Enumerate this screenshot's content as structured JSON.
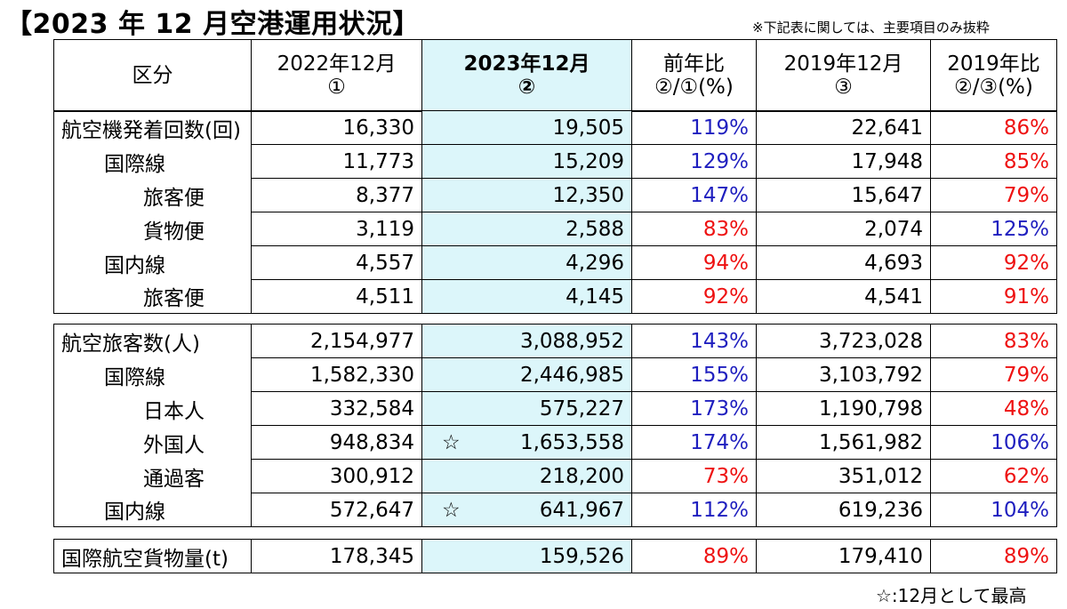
{
  "title": "【2023 年 12 月空港運用状況】",
  "note": "※下記表に関しては、主要項目のみ抜粋",
  "footnote": "☆:12月として最高",
  "headers": [
    {
      "line1": "区分",
      "line2": ""
    },
    {
      "line1": "2022年12月",
      "line2": "①"
    },
    {
      "line1": "2023年12月",
      "line2": "②"
    },
    {
      "line1": "前年比",
      "line2": "②/①(%)"
    },
    {
      "line1": "2019年12月",
      "line2": "③"
    },
    {
      "line1": "2019年比",
      "line2": "②/③(%)"
    }
  ],
  "colors": {
    "highlight": "#dcf6fa",
    "pct_up": "#1f1fbf",
    "pct_down": "#ee1111"
  },
  "sections": [
    {
      "rows": [
        {
          "label": "航空機発着回数(回)",
          "level": 0,
          "y2022": "16,330",
          "y2023": "19,505",
          "star": "",
          "yoy": "119%",
          "yoy_color": "blue",
          "y2019": "22,641",
          "vs2019": "86%",
          "vs2019_color": "red"
        },
        {
          "label": "国際線",
          "level": 1,
          "y2022": "11,773",
          "y2023": "15,209",
          "star": "",
          "yoy": "129%",
          "yoy_color": "blue",
          "y2019": "17,948",
          "vs2019": "85%",
          "vs2019_color": "red"
        },
        {
          "label": "旅客便",
          "level": 2,
          "y2022": "8,377",
          "y2023": "12,350",
          "star": "",
          "yoy": "147%",
          "yoy_color": "blue",
          "y2019": "15,647",
          "vs2019": "79%",
          "vs2019_color": "red"
        },
        {
          "label": "貨物便",
          "level": 2,
          "y2022": "3,119",
          "y2023": "2,588",
          "star": "",
          "yoy": "83%",
          "yoy_color": "red",
          "y2019": "2,074",
          "vs2019": "125%",
          "vs2019_color": "blue"
        },
        {
          "label": "国内線",
          "level": 1,
          "y2022": "4,557",
          "y2023": "4,296",
          "star": "",
          "yoy": "94%",
          "yoy_color": "red",
          "y2019": "4,693",
          "vs2019": "92%",
          "vs2019_color": "red"
        },
        {
          "label": "旅客便",
          "level": 2,
          "y2022": "4,511",
          "y2023": "4,145",
          "star": "",
          "yoy": "92%",
          "yoy_color": "red",
          "y2019": "4,541",
          "vs2019": "91%",
          "vs2019_color": "red"
        }
      ]
    },
    {
      "rows": [
        {
          "label": "航空旅客数(人)",
          "level": 0,
          "y2022": "2,154,977",
          "y2023": "3,088,952",
          "star": "",
          "yoy": "143%",
          "yoy_color": "blue",
          "y2019": "3,723,028",
          "vs2019": "83%",
          "vs2019_color": "red"
        },
        {
          "label": "国際線",
          "level": 1,
          "y2022": "1,582,330",
          "y2023": "2,446,985",
          "star": "",
          "yoy": "155%",
          "yoy_color": "blue",
          "y2019": "3,103,792",
          "vs2019": "79%",
          "vs2019_color": "red"
        },
        {
          "label": "日本人",
          "level": 2,
          "y2022": "332,584",
          "y2023": "575,227",
          "star": "",
          "yoy": "173%",
          "yoy_color": "blue",
          "y2019": "1,190,798",
          "vs2019": "48%",
          "vs2019_color": "red"
        },
        {
          "label": "外国人",
          "level": 2,
          "y2022": "948,834",
          "y2023": "1,653,558",
          "star": "☆",
          "yoy": "174%",
          "yoy_color": "blue",
          "y2019": "1,561,982",
          "vs2019": "106%",
          "vs2019_color": "blue"
        },
        {
          "label": "通過客",
          "level": 2,
          "y2022": "300,912",
          "y2023": "218,200",
          "star": "",
          "yoy": "73%",
          "yoy_color": "red",
          "y2019": "351,012",
          "vs2019": "62%",
          "vs2019_color": "red"
        },
        {
          "label": "国内線",
          "level": 1,
          "y2022": "572,647",
          "y2023": "641,967",
          "star": "☆",
          "yoy": "112%",
          "yoy_color": "blue",
          "y2019": "619,236",
          "vs2019": "104%",
          "vs2019_color": "blue"
        }
      ]
    },
    {
      "rows": [
        {
          "label": "国際航空貨物量(t)",
          "level": 0,
          "y2022": "178,345",
          "y2023": "159,526",
          "star": "",
          "yoy": "89%",
          "yoy_color": "red",
          "y2019": "179,410",
          "vs2019": "89%",
          "vs2019_color": "red"
        }
      ]
    }
  ]
}
